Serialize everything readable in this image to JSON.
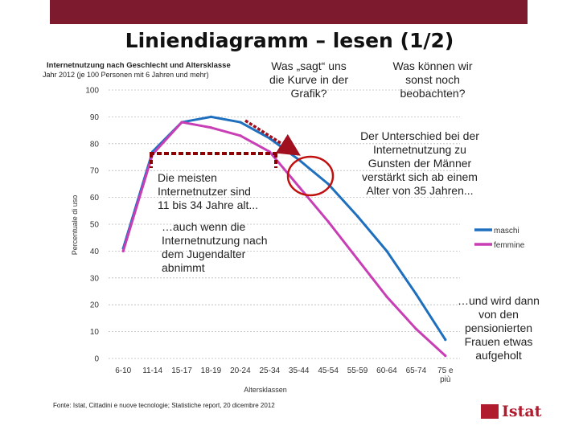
{
  "slide": {
    "title": "Liniendiagramm – lesen (1/2)",
    "question1": [
      "Was „sagt“ uns",
      "die Kurve in der",
      "Grafik?"
    ],
    "question2": [
      "Was können wir",
      "sonst noch",
      "beobachten?"
    ]
  },
  "annotations": {
    "difference": [
      "Der Unterschied bei der",
      "Internetnutzung zu",
      "Gunsten der Männer",
      "verstärkt sich ab einem",
      "Alter von 35 Jahren..."
    ],
    "most_users": [
      "Die meisten",
      "Internetnutzer sind",
      "11 bis 34 Jahre alt..."
    ],
    "decline": [
      "…auch wenn die",
      "Internetnutzung nach",
      "dem Jugendalter",
      "abnimmt"
    ],
    "retired": [
      "…und wird dann",
      "von den",
      "pensionierten",
      "Frauen etwas",
      "aufgeholt"
    ]
  },
  "source": "Fonte: Istat, Cittadini e nuove tecnologie; Statistiche report, 20 dicembre 2012",
  "logo": "Istat",
  "colors": {
    "topbar": "#7d1a2e",
    "maschi": "#1f6fbf",
    "femmine": "#c83fb5",
    "arrow": "#a0101e",
    "bracket": "#8b0000",
    "circle": "#c01010"
  },
  "chart_data": {
    "type": "line",
    "title": "Internetnutzung nach Geschlecht und Altersklasse",
    "subtitle": "Jahr 2012 (je 100 Personen mit 6 Jahren und mehr)",
    "xlabel": "Altersklassen",
    "ylabel": "Percentuale di uso",
    "ylim": [
      0,
      100
    ],
    "yticks": [
      0,
      10,
      20,
      30,
      40,
      50,
      60,
      70,
      80,
      90,
      100
    ],
    "categories": [
      "6-10",
      "11-14",
      "15-17",
      "18-19",
      "20-24",
      "25-34",
      "35-44",
      "45-54",
      "55-59",
      "60-64",
      "65-74",
      "75 e più"
    ],
    "grid": "horizontal dashed",
    "legend": "right",
    "series": [
      {
        "name": "maschi",
        "values": [
          41,
          77,
          88,
          90,
          88,
          82,
          74,
          65,
          53,
          40,
          24,
          7
        ]
      },
      {
        "name": "femmine",
        "values": [
          40,
          76,
          88,
          86,
          83,
          77,
          64,
          51,
          37,
          23,
          11,
          1
        ]
      }
    ]
  }
}
